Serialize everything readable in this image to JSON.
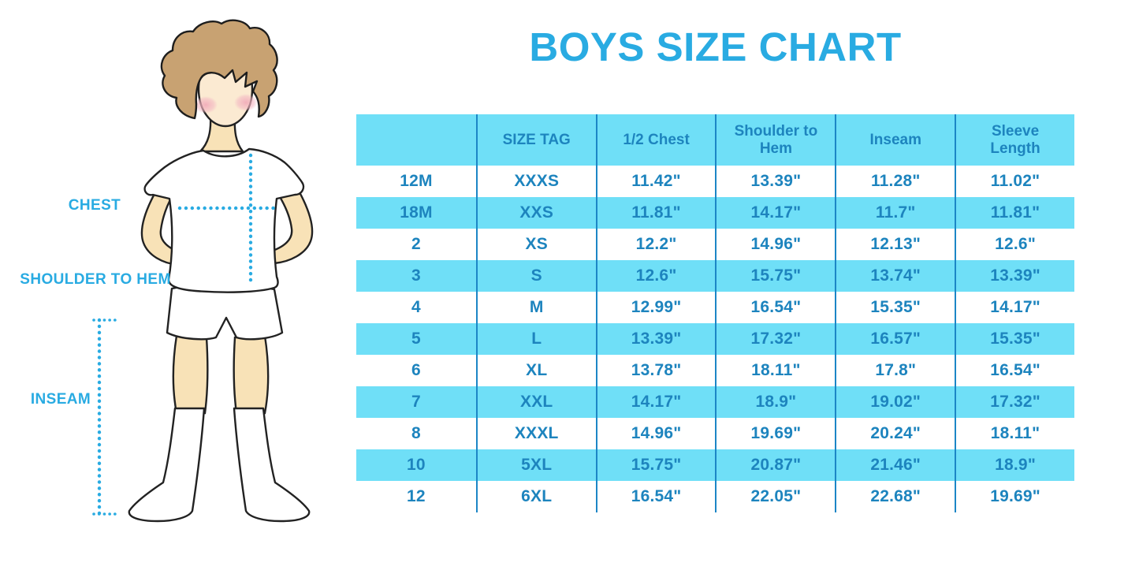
{
  "title": "BOYS SIZE CHART",
  "figure": {
    "labels": {
      "chest": "CHEST",
      "shoulder_to_hem": "SHOULDER TO HEM",
      "inseam": "INSEAM"
    }
  },
  "colors": {
    "accent_blue": "#29ABE2",
    "table_stripe": "#6FDFF7",
    "table_text": "#1D84BE",
    "table_line": "#1C86C6"
  },
  "chart_data": {
    "type": "table",
    "title": "BOYS SIZE CHART",
    "columns": [
      "",
      "SIZE TAG",
      "1/2 Chest",
      "Shoulder to Hem",
      "Inseam",
      "Sleeve Length"
    ],
    "rows": [
      [
        "12M",
        "XXXS",
        "11.42\"",
        "13.39\"",
        "11.28\"",
        "11.02\""
      ],
      [
        "18M",
        "XXS",
        "11.81\"",
        "14.17\"",
        "11.7\"",
        "11.81\""
      ],
      [
        "2",
        "XS",
        "12.2\"",
        "14.96\"",
        "12.13\"",
        "12.6\""
      ],
      [
        "3",
        "S",
        "12.6\"",
        "15.75\"",
        "13.74\"",
        "13.39\""
      ],
      [
        "4",
        "M",
        "12.99\"",
        "16.54\"",
        "15.35\"",
        "14.17\""
      ],
      [
        "5",
        "L",
        "13.39\"",
        "17.32\"",
        "16.57\"",
        "15.35\""
      ],
      [
        "6",
        "XL",
        "13.78\"",
        "18.11\"",
        "17.8\"",
        "16.54\""
      ],
      [
        "7",
        "XXL",
        "14.17\"",
        "18.9\"",
        "19.02\"",
        "17.32\""
      ],
      [
        "8",
        "XXXL",
        "14.96\"",
        "19.69\"",
        "20.24\"",
        "18.11\""
      ],
      [
        "10",
        "5XL",
        "15.75\"",
        "20.87\"",
        "21.46\"",
        "18.9\""
      ],
      [
        "12",
        "6XL",
        "16.54\"",
        "22.05\"",
        "22.68\"",
        "19.69\""
      ]
    ],
    "striped_rows_background": "row indices 1,3,5,7,9 and header are cyan; others white",
    "legend": "measurements shown on boy illustration: chest, shoulder to hem, inseam"
  }
}
